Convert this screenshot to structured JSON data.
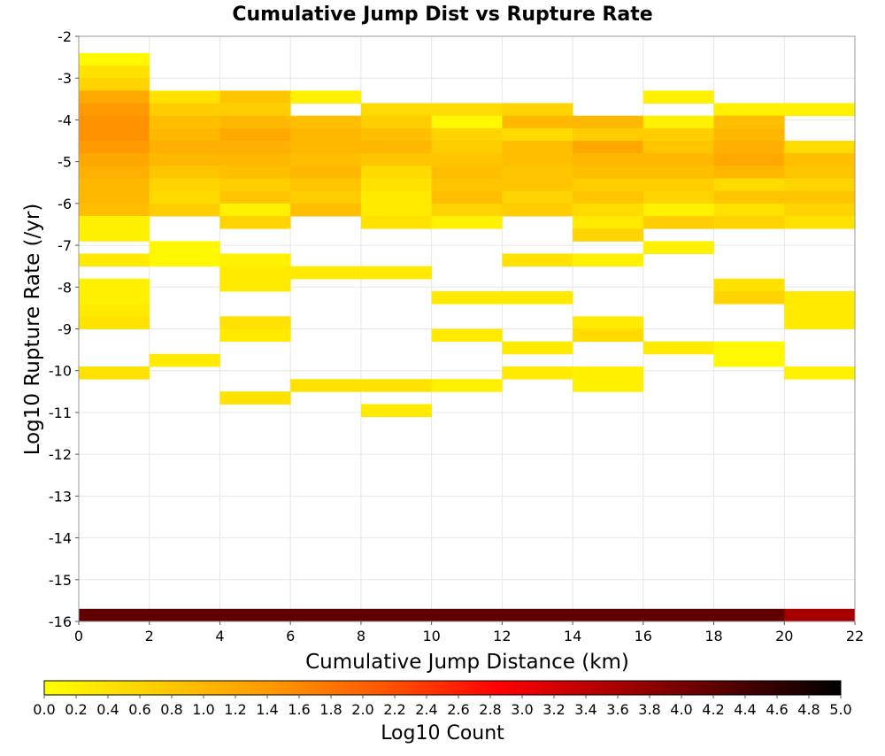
{
  "chart_data": {
    "type": "heatmap",
    "title": "Cumulative Jump Dist vs Rupture Rate",
    "xlabel": "Cumulative Jump Distance (km)",
    "ylabel": "Log10 Rupture Rate (/yr)",
    "xlim": [
      0,
      22
    ],
    "ylim": [
      -16,
      -2
    ],
    "x_ticks": [
      "0",
      "2",
      "4",
      "6",
      "8",
      "10",
      "12",
      "14",
      "16",
      "18",
      "20",
      "22"
    ],
    "y_ticks": [
      "-2",
      "-3",
      "-4",
      "-5",
      "-6",
      "-7",
      "-8",
      "-9",
      "-10",
      "-11",
      "-12",
      "-13",
      "-14",
      "-15",
      "-16"
    ],
    "grid": true,
    "colorbar": {
      "label": "Log10 Count",
      "min": 0.0,
      "max": 5.0,
      "ticks": [
        "0.0",
        "0.2",
        "0.4",
        "0.6",
        "0.8",
        "1.0",
        "1.2",
        "1.4",
        "1.6",
        "1.8",
        "2.0",
        "2.2",
        "2.4",
        "2.6",
        "2.8",
        "3.0",
        "3.2",
        "3.4",
        "3.6",
        "3.8",
        "4.0",
        "4.2",
        "4.4",
        "4.6",
        "4.8",
        "5.0"
      ],
      "colors": [
        "#ffff00",
        "#ffcc00",
        "#ff9900",
        "#ff5500",
        "#ff0000",
        "#aa0000",
        "#550000",
        "#000000"
      ]
    },
    "x_bin_width": 2,
    "y_bin_height": 0.3,
    "columns": [
      {
        "x0": 0,
        "cells": [
          [
            -2.7,
            0.1
          ],
          [
            -3.0,
            0.4
          ],
          [
            -3.3,
            0.6
          ],
          [
            -3.6,
            1.2
          ],
          [
            -3.9,
            1.4
          ],
          [
            -4.2,
            1.5
          ],
          [
            -4.5,
            1.5
          ],
          [
            -4.8,
            1.4
          ],
          [
            -5.1,
            1.2
          ],
          [
            -5.4,
            1.1
          ],
          [
            -5.7,
            1.0
          ],
          [
            -6.0,
            1.0
          ],
          [
            -6.3,
            0.9
          ],
          [
            -6.6,
            0.2
          ],
          [
            -6.9,
            0.2
          ],
          [
            -7.5,
            0.3
          ],
          [
            -8.1,
            0.2
          ],
          [
            -8.4,
            0.2
          ],
          [
            -8.7,
            0.3
          ],
          [
            -9.0,
            0.4
          ],
          [
            -10.2,
            0.4
          ],
          [
            -16.0,
            4.2
          ]
        ]
      },
      {
        "x0": 2,
        "cells": [
          [
            -3.6,
            0.4
          ],
          [
            -3.9,
            0.7
          ],
          [
            -4.2,
            0.9
          ],
          [
            -4.5,
            1.0
          ],
          [
            -4.8,
            1.1
          ],
          [
            -5.1,
            1.0
          ],
          [
            -5.4,
            0.8
          ],
          [
            -5.7,
            0.6
          ],
          [
            -6.0,
            0.5
          ],
          [
            -6.3,
            0.7
          ],
          [
            -7.2,
            0.1
          ],
          [
            -7.5,
            0.1
          ],
          [
            -9.9,
            0.3
          ],
          [
            -16.0,
            4.2
          ]
        ]
      },
      {
        "x0": 4,
        "cells": [
          [
            -3.6,
            0.8
          ],
          [
            -3.9,
            0.7
          ],
          [
            -4.2,
            1.0
          ],
          [
            -4.5,
            1.2
          ],
          [
            -4.8,
            1.1
          ],
          [
            -5.1,
            1.0
          ],
          [
            -5.4,
            0.9
          ],
          [
            -5.7,
            0.7
          ],
          [
            -6.0,
            0.8
          ],
          [
            -6.3,
            0.2
          ],
          [
            -6.6,
            0.6
          ],
          [
            -7.5,
            0.2
          ],
          [
            -7.8,
            0.3
          ],
          [
            -8.1,
            0.3
          ],
          [
            -9.0,
            0.4
          ],
          [
            -9.3,
            0.3
          ],
          [
            -10.8,
            0.4
          ],
          [
            -16.0,
            4.2
          ]
        ]
      },
      {
        "x0": 6,
        "cells": [
          [
            -3.6,
            0.2
          ],
          [
            -4.2,
            0.9
          ],
          [
            -4.5,
            1.0
          ],
          [
            -4.8,
            1.0
          ],
          [
            -5.1,
            0.9
          ],
          [
            -5.4,
            1.0
          ],
          [
            -5.7,
            0.8
          ],
          [
            -6.0,
            0.7
          ],
          [
            -6.3,
            0.9
          ],
          [
            -7.8,
            0.3
          ],
          [
            -10.5,
            0.4
          ],
          [
            -16.0,
            4.2
          ]
        ]
      },
      {
        "x0": 8,
        "cells": [
          [
            -3.9,
            0.5
          ],
          [
            -4.2,
            0.7
          ],
          [
            -4.5,
            0.9
          ],
          [
            -4.8,
            1.0
          ],
          [
            -5.1,
            0.8
          ],
          [
            -5.4,
            0.5
          ],
          [
            -5.7,
            0.4
          ],
          [
            -6.0,
            0.3
          ],
          [
            -6.3,
            0.3
          ],
          [
            -6.6,
            0.4
          ],
          [
            -7.8,
            0.3
          ],
          [
            -10.5,
            0.4
          ],
          [
            -11.1,
            0.3
          ],
          [
            -16.0,
            4.2
          ]
        ]
      },
      {
        "x0": 10,
        "cells": [
          [
            -3.9,
            0.5
          ],
          [
            -4.2,
            0.1
          ],
          [
            -4.5,
            0.6
          ],
          [
            -4.8,
            0.7
          ],
          [
            -5.1,
            0.8
          ],
          [
            -5.4,
            0.9
          ],
          [
            -5.7,
            0.8
          ],
          [
            -6.0,
            0.9
          ],
          [
            -6.3,
            0.6
          ],
          [
            -6.6,
            0.2
          ],
          [
            -8.4,
            0.3
          ],
          [
            -9.3,
            0.3
          ],
          [
            -10.5,
            0.2
          ],
          [
            -16.0,
            4.2
          ]
        ]
      },
      {
        "x0": 12,
        "cells": [
          [
            -3.9,
            0.6
          ],
          [
            -4.2,
            1.0
          ],
          [
            -4.5,
            0.5
          ],
          [
            -4.8,
            0.9
          ],
          [
            -5.1,
            0.9
          ],
          [
            -5.4,
            0.8
          ],
          [
            -5.7,
            0.8
          ],
          [
            -6.0,
            0.6
          ],
          [
            -6.3,
            0.7
          ],
          [
            -7.5,
            0.4
          ],
          [
            -8.4,
            0.3
          ],
          [
            -9.6,
            0.3
          ],
          [
            -10.2,
            0.3
          ],
          [
            -16.0,
            4.2
          ]
        ]
      },
      {
        "x0": 14,
        "cells": [
          [
            -4.2,
            1.0
          ],
          [
            -4.5,
            0.7
          ],
          [
            -4.8,
            1.2
          ],
          [
            -5.1,
            1.0
          ],
          [
            -5.4,
            0.9
          ],
          [
            -5.7,
            0.7
          ],
          [
            -6.0,
            0.8
          ],
          [
            -6.3,
            0.5
          ],
          [
            -6.6,
            0.3
          ],
          [
            -6.9,
            0.6
          ],
          [
            -7.5,
            0.2
          ],
          [
            -9.0,
            0.3
          ],
          [
            -9.3,
            0.5
          ],
          [
            -10.2,
            0.2
          ],
          [
            -10.5,
            0.2
          ],
          [
            -16.0,
            4.2
          ]
        ]
      },
      {
        "x0": 16,
        "cells": [
          [
            -3.6,
            0.2
          ],
          [
            -4.2,
            0.2
          ],
          [
            -4.5,
            0.7
          ],
          [
            -4.8,
            0.8
          ],
          [
            -5.1,
            1.0
          ],
          [
            -5.4,
            0.9
          ],
          [
            -5.7,
            0.7
          ],
          [
            -6.0,
            0.6
          ],
          [
            -6.3,
            0.2
          ],
          [
            -6.6,
            0.7
          ],
          [
            -7.2,
            0.2
          ],
          [
            -9.6,
            0.3
          ],
          [
            -16.0,
            4.2
          ]
        ]
      },
      {
        "x0": 18,
        "cells": [
          [
            -3.9,
            0.2
          ],
          [
            -4.2,
            0.9
          ],
          [
            -4.5,
            1.0
          ],
          [
            -4.8,
            1.1
          ],
          [
            -5.1,
            1.2
          ],
          [
            -5.4,
            1.0
          ],
          [
            -5.7,
            0.5
          ],
          [
            -6.0,
            0.8
          ],
          [
            -6.3,
            0.4
          ],
          [
            -6.6,
            0.6
          ],
          [
            -8.1,
            0.4
          ],
          [
            -8.4,
            0.6
          ],
          [
            -9.6,
            0.1
          ],
          [
            -9.9,
            0.1
          ],
          [
            -16.0,
            4.2
          ]
        ]
      },
      {
        "x0": 20,
        "cells": [
          [
            -3.9,
            0.2
          ],
          [
            -4.8,
            0.5
          ],
          [
            -5.1,
            0.9
          ],
          [
            -5.4,
            0.8
          ],
          [
            -5.7,
            0.6
          ],
          [
            -6.0,
            0.8
          ],
          [
            -6.3,
            0.6
          ],
          [
            -6.6,
            0.4
          ],
          [
            -8.4,
            0.3
          ],
          [
            -8.7,
            0.3
          ],
          [
            -9.0,
            0.3
          ],
          [
            -10.2,
            0.2
          ],
          [
            -16.0,
            3.6
          ]
        ]
      }
    ]
  }
}
